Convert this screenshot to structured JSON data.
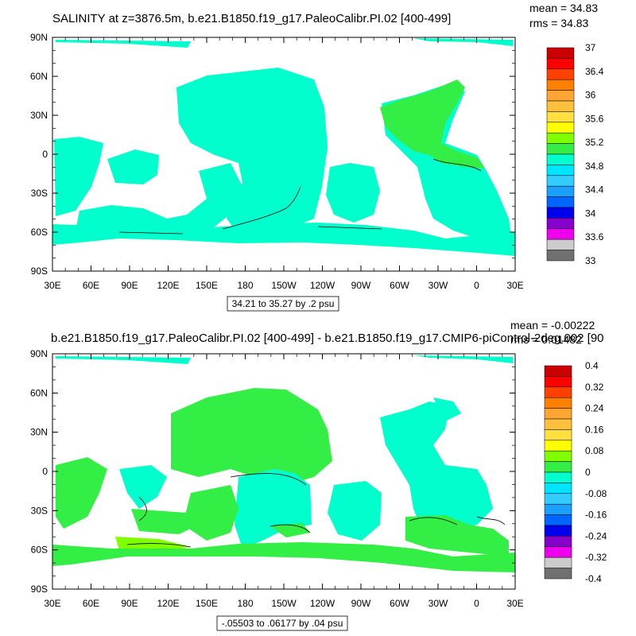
{
  "panels": [
    {
      "title": "SALINITY at z=3876.5m, b.e21.B1850.f19_g17.PaleoCalibr.PI.02 [400-499]",
      "stats": {
        "mean": "mean = 34.83",
        "rms": "rms = 34.83"
      },
      "contour_info": "34.21 to 35.27 by .2 psu",
      "colorbar_labels": [
        "37",
        "36.4",
        "36",
        "35.6",
        "35.2",
        "34.8",
        "34.4",
        "34",
        "33.6",
        "33"
      ],
      "colorbar_colors": [
        "#cc0000",
        "#ff0000",
        "#ff4000",
        "#ff8000",
        "#ffa533",
        "#ffc040",
        "#ffe040",
        "#ffff00",
        "#80ff00",
        "#33ee44",
        "#00ffcc",
        "#00e5ff",
        "#33ccff",
        "#1aa0ff",
        "#0066ff",
        "#0000ee",
        "#8800cc",
        "#ee00ee",
        "#cccccc",
        "#707070"
      ]
    },
    {
      "title": "b.e21.B1850.f19_g17.PaleoCalibr.PI.02 [400-499] - b.e21.B1850.f19_g17.CMIP6-piControl-2deg.002 [90",
      "stats": {
        "mean": "mean = -0.00222",
        "rms": "rms = 0.01482"
      },
      "contour_info": "-.05503 to .06177 by .04 psu",
      "colorbar_labels": [
        "0.4",
        "0.32",
        "0.24",
        "0.16",
        "0.08",
        "0",
        "-0.08",
        "-0.16",
        "-0.24",
        "-0.32",
        "-0.4"
      ],
      "colorbar_colors": [
        "#cc0000",
        "#ff0000",
        "#ff4000",
        "#ff8000",
        "#ffa533",
        "#ffc040",
        "#ffe040",
        "#ffff00",
        "#80ff00",
        "#33ee44",
        "#00ffcc",
        "#00e5ff",
        "#33ccff",
        "#1aa0ff",
        "#0066ff",
        "#0000ee",
        "#8800cc",
        "#ee00ee",
        "#cccccc",
        "#707070"
      ]
    }
  ],
  "lat_labels": [
    "90N",
    "60N",
    "30N",
    "0",
    "30S",
    "60S",
    "90S"
  ],
  "lon_labels": [
    "30E",
    "60E",
    "90E",
    "120E",
    "150E",
    "180",
    "150W",
    "120W",
    "90W",
    "60W",
    "30W",
    "0",
    "30E"
  ]
}
